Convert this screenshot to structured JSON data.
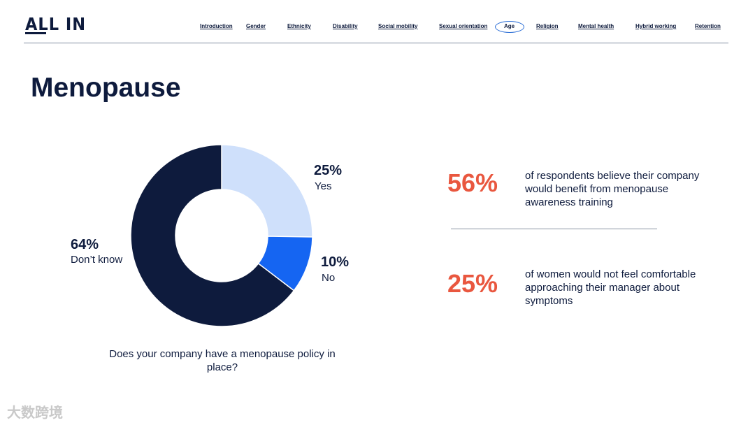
{
  "brand": {
    "logo_text": "ALL IN"
  },
  "nav": {
    "items": [
      "Introduction",
      "Gender",
      "Ethnicity",
      "Disability",
      "Social mobility",
      "Sexual orientation",
      "Age",
      "Religion",
      "Mental health",
      "Hybrid working",
      "Retention"
    ],
    "active": "Age",
    "active_color": "#2d6fd6"
  },
  "page": {
    "title": "Menopause"
  },
  "chart_data": {
    "type": "pie",
    "subtype": "donut",
    "question": "Does your company have a menopause policy in place?",
    "slices": [
      {
        "label": "Yes",
        "pct_label": "25%",
        "value": 25,
        "color": "#cfe0fb"
      },
      {
        "label": "No",
        "pct_label": "10%",
        "value": 10,
        "color": "#1565f2"
      },
      {
        "label": "Don’t know",
        "pct_label": "64%",
        "value": 64,
        "color": "#0e1b3d"
      }
    ]
  },
  "stats": [
    {
      "value": "56%",
      "text": "of respondents believe their company would benefit from menopause awareness training"
    },
    {
      "value": "25%",
      "text": "of women would not feel comfortable approaching their manager about symptoms"
    }
  ],
  "colors": {
    "accent": "#e9573f",
    "navy": "#0e1b3d"
  },
  "watermark": {
    "text": "大数跨境"
  }
}
